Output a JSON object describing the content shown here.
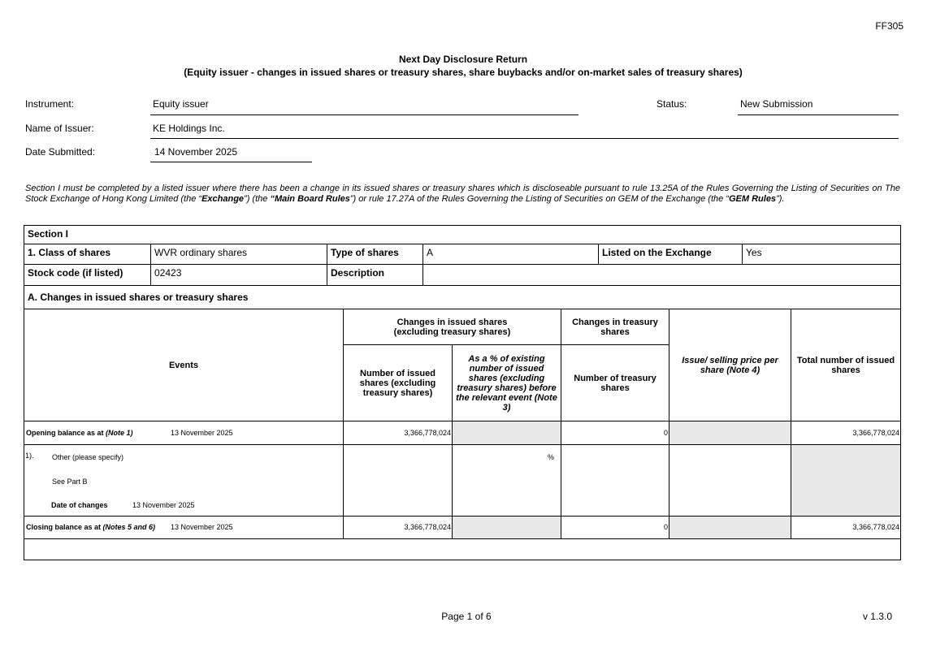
{
  "form_code": "FF305",
  "title": "Next Day Disclosure Return",
  "subtitle": "(Equity issuer - changes in issued shares or treasury shares, share buybacks and/or on-market sales of treasury shares)",
  "fields": {
    "instrument_label": "Instrument:",
    "instrument_value": "Equity issuer",
    "status_label": "Status:",
    "status_value": "New Submission",
    "issuer_label": "Name of Issuer:",
    "issuer_value": "KE Holdings Inc.",
    "date_label": "Date Submitted:",
    "date_value": "14 November 2025"
  },
  "intro": {
    "p1": "Section I must be completed by a listed issuer where there has been a change in its issued shares or treasury shares which is discloseable pursuant to rule 13.25A of the Rules Governing the Listing of Securities on The Stock Exchange of Hong Kong Limited (the “",
    "exchange": "Exchange",
    "p2": "”) (the ",
    "mbr": "“Main Board Rules",
    "p3": "”) or rule 17.27A of the Rules Governing the Listing of Securities on GEM of the Exchange (the “",
    "gem": "GEM Rules",
    "p4": "”)."
  },
  "section": {
    "title": "Section I",
    "class_label": "1. Class of shares",
    "class_value": "WVR ordinary shares",
    "type_label": "Type of shares",
    "type_value": "A",
    "listed_label": "Listed on the Exchange",
    "listed_value": "Yes",
    "stock_label": "Stock code (if listed)",
    "stock_value": "02423",
    "desc_label": "Description",
    "desc_value": "",
    "part_a": "A. Changes in issued shares or treasury shares"
  },
  "table": {
    "h_events": "Events",
    "h_issued_group": "Changes in issued shares (excluding treasury shares)",
    "h_treasury_group": "Changes in treasury shares",
    "h_num_issued": "Number of issued shares (excluding treasury shares)",
    "h_pct": "As a % of existing number of issued shares (excluding treasury shares) before the relevant event (Note 3)",
    "h_num_treasury": "Number of treasury shares",
    "h_price": "Issue/ selling price per share (Note 4)",
    "h_total": "Total number of issued shares",
    "opening": {
      "label": "Opening balance as at ",
      "note": "(Note 1)",
      "date": "13 November 2025",
      "issued": "3,366,778,024",
      "treasury": "0",
      "total": "3,366,778,024"
    },
    "event": {
      "num": "1).",
      "type": "Other (please specify)",
      "detail": "See Part B",
      "date_label": "Date of changes",
      "date": "13 November 2025",
      "pct_sign": "%"
    },
    "closing": {
      "label": "Closing balance as at ",
      "note": "(Notes 5 and 6)",
      "date": "13 November 2025",
      "issued": "3,366,778,024",
      "treasury": "0",
      "total": "3,366,778,024"
    }
  },
  "footer": {
    "page": "Page 1 of 6",
    "version": "v 1.3.0"
  }
}
